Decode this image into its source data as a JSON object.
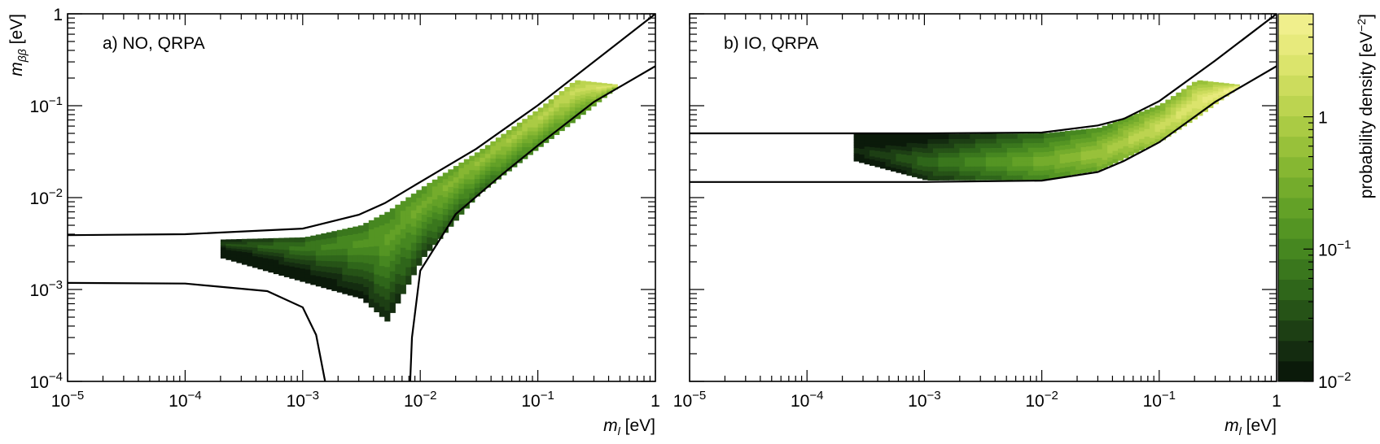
{
  "chart_data": [
    {
      "type": "heatmap",
      "panel_label": "a) NO, QRPA",
      "x_axis": {
        "label_var": "m",
        "label_sub": "l",
        "label_unit": " [eV]",
        "scale": "log",
        "range": [
          1e-05,
          1
        ],
        "ticks": [
          {
            "base": "10",
            "exp": "−5",
            "value": 1e-05
          },
          {
            "base": "10",
            "exp": "−4",
            "value": 0.0001
          },
          {
            "base": "10",
            "exp": "−3",
            "value": 0.001
          },
          {
            "base": "10",
            "exp": "−2",
            "value": 0.01
          },
          {
            "base": "10",
            "exp": "−1",
            "value": 0.1
          },
          {
            "base": "1",
            "exp": "",
            "value": 1
          }
        ]
      },
      "y_axis": {
        "label_var": "m",
        "label_sub": "ββ",
        "label_unit": " [eV]",
        "scale": "log",
        "range": [
          0.0001,
          1
        ],
        "ticks": [
          {
            "base": "10",
            "exp": "−4",
            "value": 0.0001
          },
          {
            "base": "10",
            "exp": "−3",
            "value": 0.001
          },
          {
            "base": "10",
            "exp": "−2",
            "value": 0.01
          },
          {
            "base": "10",
            "exp": "−1",
            "value": 0.1
          },
          {
            "base": "1",
            "exp": "",
            "value": 1
          }
        ]
      },
      "upper_boundary": [
        [
          1e-05,
          0.0039
        ],
        [
          0.0001,
          0.004
        ],
        [
          0.001,
          0.0046
        ],
        [
          0.003,
          0.0065
        ],
        [
          0.005,
          0.0087
        ],
        [
          0.01,
          0.0148
        ],
        [
          0.03,
          0.034
        ],
        [
          0.1,
          0.101
        ],
        [
          1,
          1.0
        ]
      ],
      "lower_boundary_left": [
        [
          1e-05,
          0.00118
        ],
        [
          0.0001,
          0.00116
        ],
        [
          0.0005,
          0.00096
        ],
        [
          0.001,
          0.00064
        ],
        [
          0.0013,
          0.00032
        ],
        [
          0.00155,
          0.0001
        ]
      ],
      "lower_boundary_right": [
        [
          0.0082,
          0.0001
        ],
        [
          0.0085,
          0.0003
        ],
        [
          0.01,
          0.0016
        ],
        [
          0.02,
          0.0066
        ],
        [
          0.05,
          0.018
        ],
        [
          0.1,
          0.037
        ],
        [
          0.3,
          0.11
        ],
        [
          1,
          0.27
        ]
      ],
      "density_band": [
        [
          0.0002,
          0.0035,
          0.0022
        ],
        [
          0.001,
          0.0037,
          0.0012
        ],
        [
          0.003,
          0.005,
          0.0008
        ],
        [
          0.005,
          0.007,
          0.00045
        ],
        [
          0.01,
          0.013,
          0.0022
        ],
        [
          0.03,
          0.032,
          0.011
        ],
        [
          0.1,
          0.095,
          0.036
        ],
        [
          0.2,
          0.19,
          0.07
        ],
        [
          0.45,
          0.17,
          0.16
        ]
      ]
    },
    {
      "type": "heatmap",
      "panel_label": "b) IO, QRPA",
      "x_axis": {
        "label_var": "m",
        "label_sub": "l",
        "label_unit": " [eV]",
        "scale": "log",
        "range": [
          1e-05,
          1
        ],
        "ticks": [
          {
            "base": "10",
            "exp": "−5",
            "value": 1e-05
          },
          {
            "base": "10",
            "exp": "−4",
            "value": 0.0001
          },
          {
            "base": "10",
            "exp": "−3",
            "value": 0.001
          },
          {
            "base": "10",
            "exp": "−2",
            "value": 0.01
          },
          {
            "base": "10",
            "exp": "−1",
            "value": 0.1
          },
          {
            "base": "1",
            "exp": "",
            "value": 1
          }
        ]
      },
      "y_axis": {
        "scale": "log",
        "range": [
          0.0001,
          1
        ]
      },
      "upper_boundary": [
        [
          1e-05,
          0.05
        ],
        [
          0.001,
          0.05
        ],
        [
          0.01,
          0.051
        ],
        [
          0.03,
          0.061
        ],
        [
          0.05,
          0.072
        ],
        [
          0.1,
          0.112
        ],
        [
          0.3,
          0.31
        ],
        [
          1,
          1.0
        ]
      ],
      "lower_boundary": [
        [
          1e-05,
          0.0148
        ],
        [
          0.001,
          0.0148
        ],
        [
          0.01,
          0.0153
        ],
        [
          0.03,
          0.019
        ],
        [
          0.05,
          0.025
        ],
        [
          0.1,
          0.04
        ],
        [
          0.3,
          0.11
        ],
        [
          1,
          0.27
        ]
      ],
      "density_band": [
        [
          0.00025,
          0.049,
          0.025
        ],
        [
          0.001,
          0.049,
          0.0155
        ],
        [
          0.01,
          0.05,
          0.0158
        ],
        [
          0.03,
          0.058,
          0.02
        ],
        [
          0.1,
          0.105,
          0.042
        ],
        [
          0.2,
          0.19,
          0.075
        ],
        [
          0.45,
          0.17,
          0.16
        ]
      ]
    }
  ],
  "colorbar": {
    "title": "probability density [eV",
    "title_sup": "−2",
    "title_close": "]",
    "scale": "log",
    "range": [
      0.01,
      6
    ],
    "ticks": [
      {
        "base": "1",
        "exp": "",
        "value": 1
      },
      {
        "base": "10",
        "exp": "−1",
        "value": 0.1
      },
      {
        "base": "10",
        "exp": "−2",
        "value": 0.01
      }
    ],
    "colors": [
      "#0b1a0a",
      "#142c10",
      "#1d3f14",
      "#265317",
      "#2f661a",
      "#3a771d",
      "#468720",
      "#549523",
      "#63a127",
      "#74ac2c",
      "#86b732",
      "#98c13a",
      "#aacb44",
      "#bcd450",
      "#ccdc5d",
      "#dbe46c",
      "#e7ea7c",
      "#f0ef8c"
    ]
  }
}
